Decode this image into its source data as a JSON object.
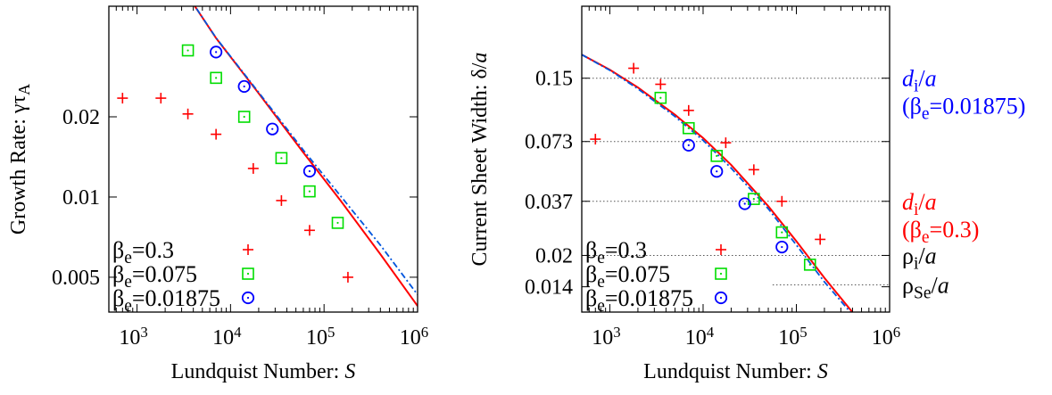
{
  "colors": {
    "series_1": "#ff0000",
    "series_2": "#00dd00",
    "series_3": "#0000ff",
    "fit_red": "#ff0000",
    "fit_blue": "#0055dd",
    "axis": "#000000"
  },
  "chart_data": [
    {
      "type": "scatter",
      "xlabel_main": "Lundquist Number: ",
      "xlabel_var": "S",
      "ylabel": "Growth Rate: γτ",
      "ylabel_sub": "A",
      "xscale": "log",
      "yscale": "log",
      "xlim": [
        500,
        1000000
      ],
      "ylim": [
        0.0037,
        0.052
      ],
      "x_ticks": [
        {
          "value": 1000,
          "label": "10",
          "exp": "3"
        },
        {
          "value": 10000,
          "label": "10",
          "exp": "4"
        },
        {
          "value": 100000,
          "label": "10",
          "exp": "5"
        },
        {
          "value": 1000000,
          "label": "10",
          "exp": "6"
        }
      ],
      "y_ticks": [
        {
          "value": 0.005,
          "label": "0.005"
        },
        {
          "value": 0.01,
          "label": "0.01"
        },
        {
          "value": 0.02,
          "label": "0.02"
        }
      ],
      "grid": false,
      "legend_position": "bottom-left",
      "series": [
        {
          "name": "β",
          "name_sub": "e",
          "name_rest": "=0.3",
          "marker": "plus",
          "color": "#ff0000",
          "x": [
            700,
            1800,
            3500,
            7000,
            17500,
            35000,
            70000,
            180000
          ],
          "y": [
            0.0235,
            0.0235,
            0.0205,
            0.0172,
            0.0128,
            0.0097,
            0.0075,
            0.005
          ]
        },
        {
          "name": "β",
          "name_sub": "e",
          "name_rest": "=0.075",
          "marker": "square",
          "color": "#00dd00",
          "x": [
            3500,
            7000,
            14000,
            35000,
            70000,
            140000
          ],
          "y": [
            0.0355,
            0.028,
            0.02,
            0.014,
            0.0105,
            0.008
          ]
        },
        {
          "name": "β",
          "name_sub": "e",
          "name_rest": "=0.01875",
          "marker": "circle",
          "color": "#0000ff",
          "x": [
            7000,
            14000,
            28000,
            70000
          ],
          "y": [
            0.035,
            0.026,
            0.018,
            0.0125
          ]
        }
      ],
      "fit_lines": [
        {
          "style": "solid",
          "color": "#ff0000",
          "x": [
            2500,
            7000,
            20000,
            60000,
            150000,
            400000,
            1000000
          ],
          "y": [
            0.068,
            0.0395,
            0.0245,
            0.0147,
            0.0097,
            0.0061,
            0.0039
          ]
        },
        {
          "style": "dash-dot",
          "color": "#0055dd",
          "x": [
            2500,
            7000,
            20000,
            60000,
            150000,
            400000,
            1000000
          ],
          "y": [
            0.068,
            0.0396,
            0.0247,
            0.015,
            0.0101,
            0.0066,
            0.0043
          ]
        }
      ]
    },
    {
      "type": "scatter",
      "xlabel_main": "Lundquist Number: ",
      "xlabel_var": "S",
      "ylabel": "Current Sheet Width: δ/",
      "ylabel_var": "a",
      "xscale": "log",
      "yscale": "log",
      "xlim": [
        500,
        1000000
      ],
      "ylim": [
        0.0105,
        0.34
      ],
      "x_ticks": [
        {
          "value": 1000,
          "label": "10",
          "exp": "3"
        },
        {
          "value": 10000,
          "label": "10",
          "exp": "4"
        },
        {
          "value": 100000,
          "label": "10",
          "exp": "5"
        },
        {
          "value": 1000000,
          "label": "10",
          "exp": "6"
        }
      ],
      "y_ticks": [
        {
          "value": 0.014,
          "label": "0.014"
        },
        {
          "value": 0.02,
          "label": "0.02"
        },
        {
          "value": 0.037,
          "label": "0.037"
        },
        {
          "value": 0.073,
          "label": "0.073"
        },
        {
          "value": 0.15,
          "label": "0.15"
        }
      ],
      "grid": false,
      "legend_position": "bottom-left",
      "series": [
        {
          "name": "β",
          "name_sub": "e",
          "name_rest": "=0.3",
          "marker": "plus",
          "color": "#ff0000",
          "x": [
            700,
            1800,
            3500,
            7000,
            17500,
            35000,
            70000,
            180000
          ],
          "y": [
            0.075,
            0.168,
            0.14,
            0.104,
            0.072,
            0.053,
            0.037,
            0.024
          ]
        },
        {
          "name": "β",
          "name_sub": "e",
          "name_rest": "=0.075",
          "marker": "square",
          "color": "#00dd00",
          "x": [
            3500,
            7000,
            14000,
            35000,
            70000,
            140000
          ],
          "y": [
            0.12,
            0.085,
            0.062,
            0.038,
            0.026,
            0.018
          ]
        },
        {
          "name": "β",
          "name_sub": "e",
          "name_rest": "=0.01875",
          "marker": "circle",
          "color": "#0000ff",
          "x": [
            7000,
            14000,
            28000,
            70000
          ],
          "y": [
            0.07,
            0.052,
            0.036,
            0.022
          ]
        }
      ],
      "fit_lines": [
        {
          "style": "solid",
          "color": "#ff0000",
          "x": [
            500,
            1000,
            2000,
            5000,
            10000,
            20000,
            50000,
            100000,
            200000,
            450000
          ],
          "y": [
            0.196,
            0.165,
            0.135,
            0.099,
            0.076,
            0.056,
            0.035,
            0.0235,
            0.0155,
            0.0098
          ]
        },
        {
          "style": "dash-dot",
          "color": "#0055dd",
          "x": [
            500,
            1000,
            2000,
            5000,
            10000,
            20000,
            50000,
            100000,
            200000,
            400000
          ],
          "y": [
            0.196,
            0.164,
            0.133,
            0.097,
            0.074,
            0.054,
            0.034,
            0.0225,
            0.0148,
            0.0102
          ]
        }
      ],
      "reference_lines": [
        {
          "value": 0.15,
          "label": "d",
          "label_sub": "i",
          "label_rest": "/",
          "label_var": "a",
          "note": "(β",
          "note_sub": "e",
          "note_rest": "=0.01875)",
          "color": "#0000ff"
        },
        {
          "value": 0.073,
          "label": "",
          "color": "#000000"
        },
        {
          "value": 0.037,
          "label": "d",
          "label_sub": "i",
          "label_rest": "/",
          "label_var": "a",
          "note": "(β",
          "note_sub": "e",
          "note_rest": "=0.3)",
          "color": "#ff0000"
        },
        {
          "value": 0.02,
          "label": "ρ",
          "label_sub": "i",
          "label_rest": "/",
          "label_var": "a",
          "color": "#000000"
        },
        {
          "value": 0.0143,
          "label": "ρ",
          "label_sub": "Se",
          "label_rest": "/",
          "label_var": "a",
          "color": "#000000"
        }
      ]
    }
  ]
}
